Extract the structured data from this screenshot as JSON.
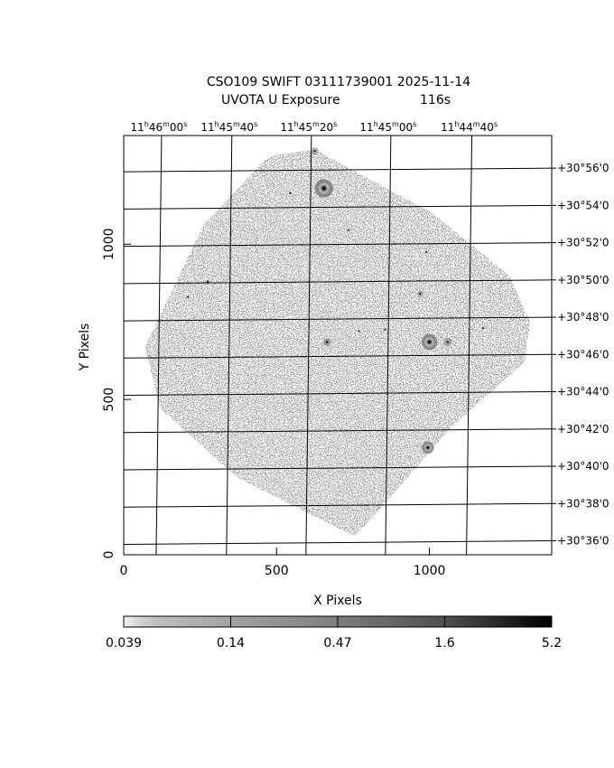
{
  "title_line1": "CSO109 SWIFT 03111739001 2025-11-14",
  "title_line2_left": "UVOTA U Exposure",
  "title_line2_right": "116s",
  "chart_data": {
    "type": "heatmap",
    "xlabel": "X Pixels",
    "ylabel": "Y Pixels",
    "xlim": [
      0,
      1400
    ],
    "ylim": [
      0,
      1350
    ],
    "x_ticks": [
      0,
      500,
      1000
    ],
    "y_ticks": [
      0,
      500,
      1000
    ],
    "ra_ticks": [
      {
        "h": "11",
        "m": "46",
        "s": "00",
        "x": 115
      },
      {
        "h": "11",
        "m": "45",
        "s": "40",
        "x": 345
      },
      {
        "h": "11",
        "m": "45",
        "s": "20",
        "x": 605
      },
      {
        "h": "11",
        "m": "45",
        "s": "00",
        "x": 865
      },
      {
        "h": "11",
        "m": "44",
        "s": "40",
        "x": 1130
      }
    ],
    "dec_ticks": [
      {
        "label": "+30°56'0",
        "y": 1245
      },
      {
        "label": "+30°54'0",
        "y": 1125
      },
      {
        "label": "+30°52'0",
        "y": 1005
      },
      {
        "label": "+30°50'0",
        "y": 885
      },
      {
        "label": "+30°48'0",
        "y": 765
      },
      {
        "label": "+30°46'0",
        "y": 645
      },
      {
        "label": "+30°44'0",
        "y": 525
      },
      {
        "label": "+30°42'0",
        "y": 405
      },
      {
        "label": "+30°40'0",
        "y": 285
      },
      {
        "label": "+30°38'0",
        "y": 165
      },
      {
        "label": "+30°36'0",
        "y": 45
      }
    ],
    "colorbar": {
      "labels": [
        "0.039",
        "0.14",
        "0.47",
        "1.6",
        "5.2"
      ]
    },
    "field_outline": [
      [
        485,
        1285
      ],
      [
        625,
        1305
      ],
      [
        1010,
        1100
      ],
      [
        1260,
        900
      ],
      [
        1330,
        750
      ],
      [
        1310,
        620
      ],
      [
        1070,
        410
      ],
      [
        850,
        160
      ],
      [
        755,
        60
      ],
      [
        370,
        250
      ],
      [
        120,
        470
      ],
      [
        70,
        670
      ],
      [
        260,
        1060
      ],
      [
        460,
        1270
      ]
    ],
    "sources": [
      {
        "x": 655,
        "y": 1180,
        "r": 30,
        "v": 1.0
      },
      {
        "x": 1000,
        "y": 685,
        "r": 26,
        "v": 1.0
      },
      {
        "x": 995,
        "y": 345,
        "r": 20,
        "v": 0.95
      },
      {
        "x": 275,
        "y": 880,
        "r": 8,
        "v": 0.95
      },
      {
        "x": 665,
        "y": 685,
        "r": 12,
        "v": 0.85
      },
      {
        "x": 1060,
        "y": 685,
        "r": 14,
        "v": 0.45
      },
      {
        "x": 970,
        "y": 840,
        "r": 10,
        "v": 0.45
      },
      {
        "x": 545,
        "y": 1165,
        "r": 4,
        "v": 0.8
      },
      {
        "x": 625,
        "y": 1300,
        "r": 12,
        "v": 0.4
      },
      {
        "x": 855,
        "y": 725,
        "r": 6,
        "v": 0.6
      },
      {
        "x": 1175,
        "y": 730,
        "r": 5,
        "v": 0.6
      },
      {
        "x": 990,
        "y": 975,
        "r": 5,
        "v": 0.5
      },
      {
        "x": 770,
        "y": 720,
        "r": 4,
        "v": 0.5
      },
      {
        "x": 735,
        "y": 1045,
        "r": 4,
        "v": 0.45
      },
      {
        "x": 210,
        "y": 830,
        "r": 4,
        "v": 0.5
      }
    ]
  }
}
